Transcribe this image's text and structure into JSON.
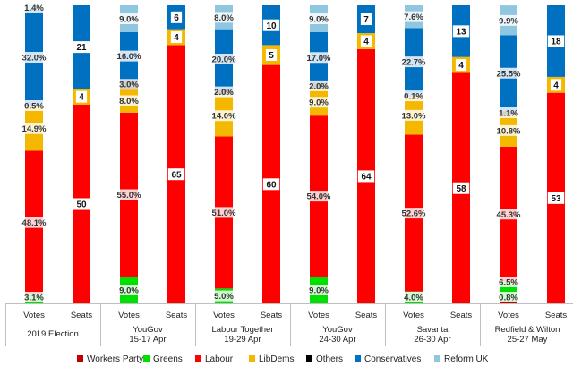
{
  "chart_data": {
    "type": "bar",
    "stacked": true,
    "series_names": [
      "Workers Party",
      "Greens",
      "Labour",
      "LibDems",
      "Others",
      "Conservatives",
      "Reform UK"
    ],
    "colors": {
      "Workers Party": "#c00000",
      "Greens": "#00e000",
      "Labour": "#ff0000",
      "LibDems": "#f5b800",
      "Others": "#000000",
      "Conservatives": "#0070c0",
      "Reform UK": "#8fc6e0"
    },
    "groups": [
      {
        "name_line1": "2019 Election",
        "name_line2": "",
        "votes": {
          "Workers Party": 0,
          "Greens": 3.1,
          "Labour": 48.1,
          "LibDems": 14.9,
          "Others": 0.5,
          "Conservatives": 32.0,
          "Reform UK": 1.4
        },
        "vote_labels": [
          {
            "party": "Greens",
            "text": "3.1%"
          },
          {
            "party": "Labour",
            "text": "48.1%"
          },
          {
            "party": "LibDems",
            "text": "14.9%"
          },
          {
            "party": "Others",
            "text": "0.5%"
          },
          {
            "party": "Conservatives",
            "text": "32.0%"
          },
          {
            "party": "Reform UK",
            "text": "1.4%"
          }
        ],
        "seats": {
          "Labour": 50,
          "LibDems": 4,
          "Conservatives": 21
        },
        "seat_labels": [
          {
            "party": "Labour",
            "text": "50"
          },
          {
            "party": "LibDems",
            "text": "4"
          },
          {
            "party": "Conservatives",
            "text": "21"
          }
        ]
      },
      {
        "name_line1": "YouGov",
        "name_line2": "15-17 Apr",
        "votes": {
          "Workers Party": 0,
          "Greens": 9.0,
          "Labour": 55.0,
          "LibDems": 8.0,
          "Others": 3.0,
          "Conservatives": 16.0,
          "Reform UK": 9.0
        },
        "vote_labels": [
          {
            "party": "Greens",
            "text": "9.0%"
          },
          {
            "party": "Labour",
            "text": "55.0%"
          },
          {
            "party": "LibDems",
            "text": "8.0%"
          },
          {
            "party": "Others",
            "text": "3.0%"
          },
          {
            "party": "Conservatives",
            "text": "16.0%"
          },
          {
            "party": "Reform UK",
            "text": "9.0%"
          }
        ],
        "seats": {
          "Labour": 65,
          "LibDems": 4,
          "Conservatives": 6
        },
        "seat_labels": [
          {
            "party": "Labour",
            "text": "65"
          },
          {
            "party": "LibDems",
            "text": "4"
          },
          {
            "party": "Conservatives",
            "text": "6"
          }
        ]
      },
      {
        "name_line1": "Labour Together",
        "name_line2": "19-29 Apr",
        "votes": {
          "Workers Party": 0,
          "Greens": 5.0,
          "Labour": 51.0,
          "LibDems": 14.0,
          "Others": 2.0,
          "Conservatives": 20.0,
          "Reform UK": 8.0
        },
        "vote_labels": [
          {
            "party": "Greens",
            "text": "5.0%"
          },
          {
            "party": "Labour",
            "text": "51.0%"
          },
          {
            "party": "LibDems",
            "text": "14.0%"
          },
          {
            "party": "Others",
            "text": "2.0%"
          },
          {
            "party": "Conservatives",
            "text": "20.0%"
          },
          {
            "party": "Reform UK",
            "text": "8.0%"
          }
        ],
        "seats": {
          "Labour": 60,
          "LibDems": 5,
          "Conservatives": 10
        },
        "seat_labels": [
          {
            "party": "Labour",
            "text": "60"
          },
          {
            "party": "LibDems",
            "text": "5"
          },
          {
            "party": "Conservatives",
            "text": "10"
          }
        ]
      },
      {
        "name_line1": "YouGov",
        "name_line2": "24-30 Apr",
        "votes": {
          "Workers Party": 0,
          "Greens": 9.0,
          "Labour": 54.0,
          "LibDems": 9.0,
          "Others": 2.0,
          "Conservatives": 17.0,
          "Reform UK": 9.0
        },
        "vote_labels": [
          {
            "party": "Greens",
            "text": "9.0%"
          },
          {
            "party": "Labour",
            "text": "54.0%"
          },
          {
            "party": "LibDems",
            "text": "9.0%"
          },
          {
            "party": "Others",
            "text": "2.0%"
          },
          {
            "party": "Conservatives",
            "text": "17.0%"
          },
          {
            "party": "Reform UK",
            "text": "9.0%"
          }
        ],
        "seats": {
          "Labour": 64,
          "LibDems": 4,
          "Conservatives": 7
        },
        "seat_labels": [
          {
            "party": "Labour",
            "text": "64"
          },
          {
            "party": "LibDems",
            "text": "4"
          },
          {
            "party": "Conservatives",
            "text": "7"
          }
        ]
      },
      {
        "name_line1": "Savanta",
        "name_line2": "26-30 Apr",
        "votes": {
          "Workers Party": 0,
          "Greens": 4.0,
          "Labour": 52.6,
          "LibDems": 13.0,
          "Others": 0.1,
          "Conservatives": 22.7,
          "Reform UK": 7.6
        },
        "vote_labels": [
          {
            "party": "Greens",
            "text": "4.0%"
          },
          {
            "party": "Labour",
            "text": "52.6%"
          },
          {
            "party": "LibDems",
            "text": "13.0%"
          },
          {
            "party": "Others",
            "text": "0.1%"
          },
          {
            "party": "Conservatives",
            "text": "22.7%"
          },
          {
            "party": "Reform UK",
            "text": "7.6%"
          }
        ],
        "seats": {
          "Labour": 58,
          "LibDems": 4,
          "Conservatives": 13
        },
        "seat_labels": [
          {
            "party": "Labour",
            "text": "58"
          },
          {
            "party": "LibDems",
            "text": "4"
          },
          {
            "party": "Conservatives",
            "text": "13"
          }
        ]
      },
      {
        "name_line1": "Redfield & Wilton",
        "name_line2": "25-27 May",
        "votes": {
          "Workers Party": 0.8,
          "Greens": 6.5,
          "Labour": 45.3,
          "LibDems": 10.8,
          "Others": 1.1,
          "Conservatives": 25.5,
          "Reform UK": 9.9
        },
        "vote_labels": [
          {
            "party": "Workers Party",
            "text": "0.8%"
          },
          {
            "party": "Greens",
            "text": "6.5%"
          },
          {
            "party": "Labour",
            "text": "45.3%"
          },
          {
            "party": "LibDems",
            "text": "10.8%"
          },
          {
            "party": "Others",
            "text": "1.1%"
          },
          {
            "party": "Conservatives",
            "text": "25.5%"
          },
          {
            "party": "Reform UK",
            "text": "9.9%"
          }
        ],
        "seats": {
          "Labour": 53,
          "LibDems": 4,
          "Conservatives": 18
        },
        "seat_labels": [
          {
            "party": "Labour",
            "text": "53"
          },
          {
            "party": "LibDems",
            "text": "4"
          },
          {
            "party": "Conservatives",
            "text": "18"
          }
        ]
      }
    ],
    "bar_labels": {
      "votes": "Votes",
      "seats": "Seats"
    },
    "vote_total": 100,
    "seat_total": 75,
    "legend": [
      "Workers Party",
      "Greens",
      "Labour",
      "LibDems",
      "Others",
      "Conservatives",
      "Reform UK"
    ],
    "legend_position": "bottom"
  }
}
